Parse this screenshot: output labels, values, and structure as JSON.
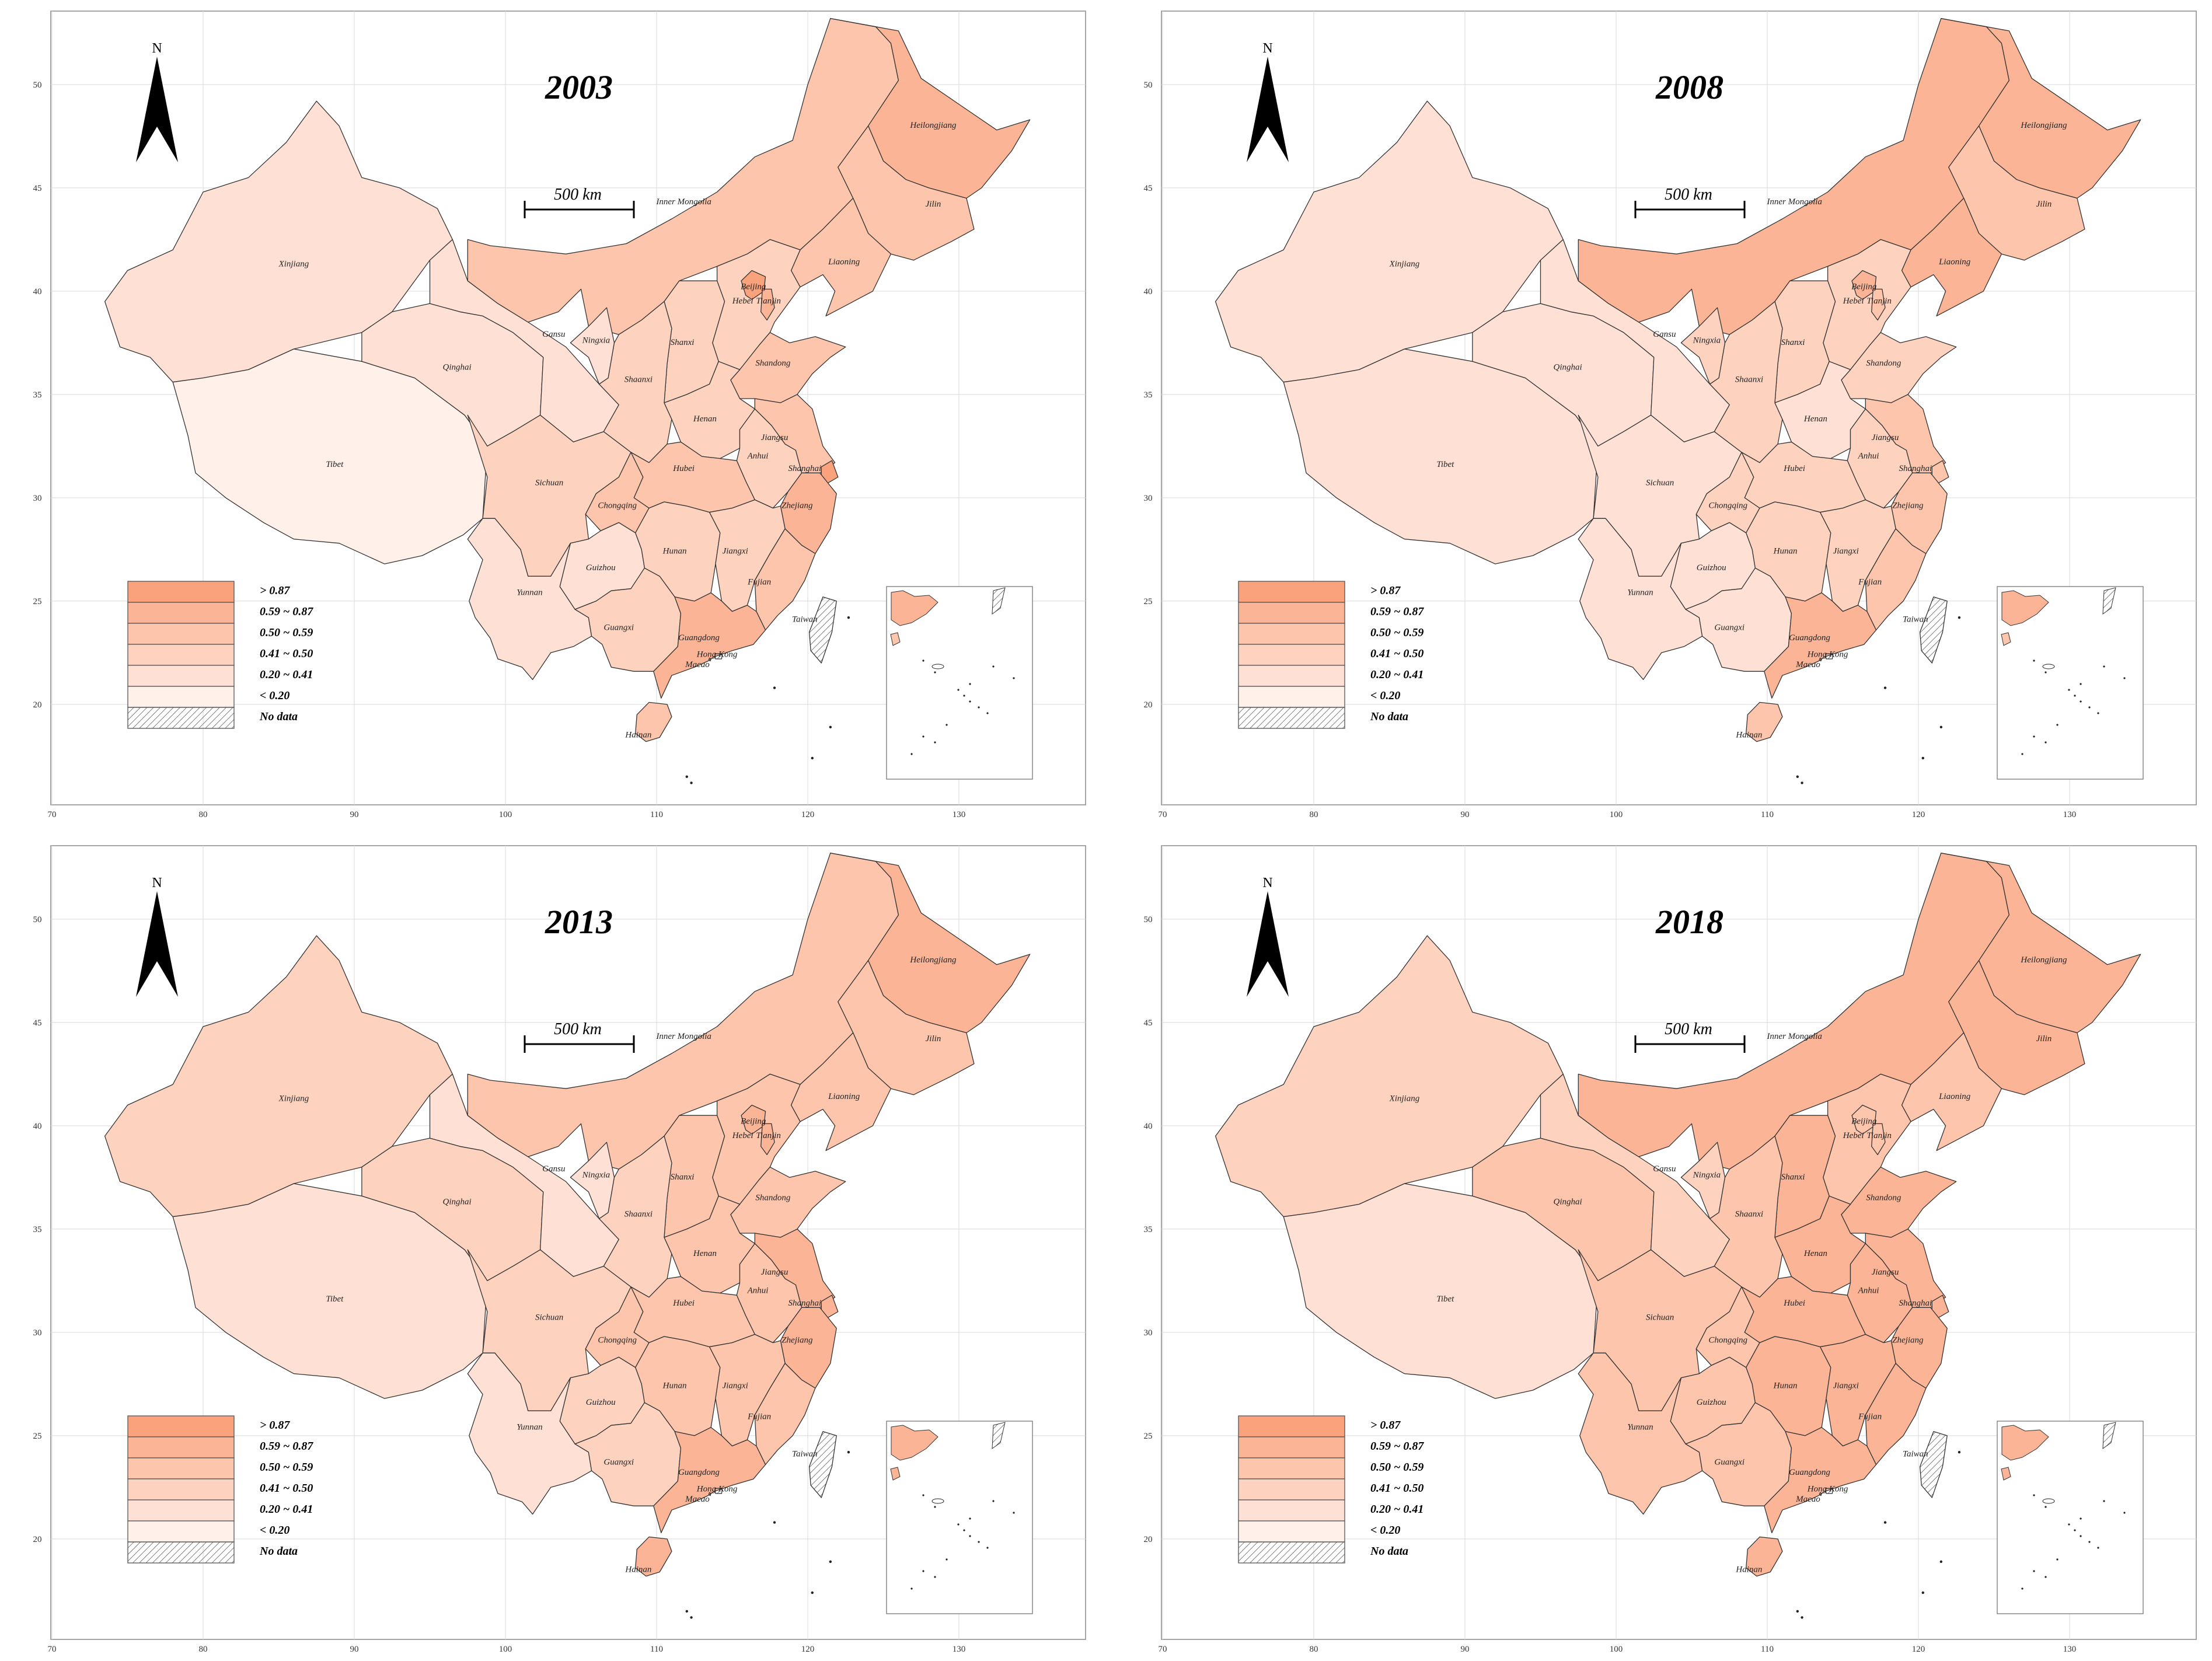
{
  "map": {
    "axes": {
      "x_ticks": [
        "70",
        "80",
        "90",
        "100",
        "110",
        "120",
        "130"
      ],
      "y_ticks": [
        "50",
        "45",
        "40",
        "35",
        "30",
        "25",
        "20"
      ]
    },
    "north_label": "N",
    "scale_label": "500 km",
    "legend": [
      {
        "label": "> 0.87",
        "color": "#f9a27b"
      },
      {
        "label": "0.59 ~ 0.87",
        "color": "#fbb496"
      },
      {
        "label": "0.50 ~ 0.59",
        "color": "#fcc5ac"
      },
      {
        "label": "0.41 ~ 0.50",
        "color": "#fdd3c0"
      },
      {
        "label": "0.20 ~ 0.41",
        "color": "#fee1d4"
      },
      {
        "label": "< 0.20",
        "color": "#fff0e9"
      },
      {
        "label": "No data",
        "color": "hatch"
      }
    ],
    "province_names": {
      "xinjiang": "Xinjiang",
      "tibet": "Tibet",
      "qinghai": "Qinghai",
      "gansu": "Gansu",
      "innermongolia": "Inner Mongolia",
      "heilongjiang": "Heilongjiang",
      "jilin": "Jilin",
      "liaoning": "Liaoning",
      "beijing": "Beijing",
      "tianjin": "Tianjin",
      "hebei": "Hebei",
      "shanxi": "Shanxi",
      "shandong": "Shandong",
      "ningxia": "Ningxia",
      "shaanxi": "Shaanxi",
      "henan": "Henan",
      "jiangsu": "Jiangsu",
      "anhui": "Anhui",
      "shanghai": "Shanghai",
      "hubei": "Hubei",
      "sichuan": "Sichuan",
      "chongqing": "Chongqing",
      "zhejiang": "Zhejiang",
      "hunan": "Hunan",
      "jiangxi": "Jiangxi",
      "guizhou": "Guizhou",
      "fujian": "Fujian",
      "yunnan": "Yunnan",
      "guangxi": "Guangxi",
      "guangdong": "Guangdong",
      "taiwan": "Taiwan",
      "hongkong": "Hong Kong",
      "macao": "Macao",
      "hainan": "Hainan"
    },
    "years": [
      {
        "title": "2003",
        "classes": {
          "xinjiang": 4,
          "tibet": 5,
          "qinghai": 4,
          "gansu": 4,
          "innermongolia": 2,
          "heilongjiang": 1,
          "jilin": 2,
          "liaoning": 2,
          "beijing": 0,
          "tianjin": 1,
          "hebei": 3,
          "shanxi": 3,
          "shandong": 2,
          "ningxia": 4,
          "shaanxi": 3,
          "henan": 3,
          "jiangsu": 2,
          "anhui": 3,
          "shanghai": 0,
          "hubei": 2,
          "sichuan": 3,
          "chongqing": 2,
          "zhejiang": 1,
          "hunan": 3,
          "jiangxi": 3,
          "guizhou": 4,
          "fujian": 2,
          "yunnan": 4,
          "guangxi": 3,
          "guangdong": 1,
          "hainan": 2,
          "taiwan": 6,
          "hongkong": 6,
          "macao": 6
        }
      },
      {
        "title": "2008",
        "classes": {
          "xinjiang": 4,
          "tibet": 4,
          "qinghai": 4,
          "gansu": 4,
          "innermongolia": 1,
          "heilongjiang": 1,
          "jilin": 2,
          "liaoning": 1,
          "beijing": 1,
          "tianjin": 2,
          "hebei": 3,
          "shanxi": 3,
          "shandong": 3,
          "ningxia": 3,
          "shaanxi": 3,
          "henan": 4,
          "jiangsu": 2,
          "anhui": 3,
          "shanghai": 2,
          "hubei": 3,
          "sichuan": 4,
          "chongqing": 3,
          "zhejiang": 2,
          "hunan": 3,
          "jiangxi": 3,
          "guizhou": 4,
          "fujian": 2,
          "yunnan": 4,
          "guangxi": 4,
          "guangdong": 1,
          "hainan": 2,
          "taiwan": 6,
          "hongkong": 6,
          "macao": 6
        }
      },
      {
        "title": "2013",
        "classes": {
          "xinjiang": 3,
          "tibet": 4,
          "qinghai": 3,
          "gansu": 4,
          "innermongolia": 2,
          "heilongjiang": 1,
          "jilin": 2,
          "liaoning": 2,
          "beijing": 1,
          "tianjin": 1,
          "hebei": 2,
          "shanxi": 2,
          "shandong": 2,
          "ningxia": 4,
          "shaanxi": 3,
          "henan": 2,
          "jiangsu": 1,
          "anhui": 2,
          "shanghai": 1,
          "hubei": 2,
          "sichuan": 3,
          "chongqing": 2,
          "zhejiang": 1,
          "hunan": 2,
          "jiangxi": 2,
          "guizhou": 3,
          "fujian": 2,
          "yunnan": 4,
          "guangxi": 3,
          "guangdong": 1,
          "hainan": 1,
          "taiwan": 6,
          "hongkong": 6,
          "macao": 6
        }
      },
      {
        "title": "2018",
        "classes": {
          "xinjiang": 3,
          "tibet": 4,
          "qinghai": 2,
          "gansu": 3,
          "innermongolia": 1,
          "heilongjiang": 1,
          "jilin": 1,
          "liaoning": 2,
          "beijing": 2,
          "tianjin": 2,
          "hebei": 2,
          "shanxi": 1,
          "shandong": 1,
          "ningxia": 3,
          "shaanxi": 2,
          "henan": 1,
          "jiangsu": 1,
          "anhui": 1,
          "shanghai": 1,
          "hubei": 1,
          "sichuan": 2,
          "chongqing": 2,
          "zhejiang": 1,
          "hunan": 1,
          "jiangxi": 1,
          "guizhou": 2,
          "fujian": 1,
          "yunnan": 2,
          "guangxi": 2,
          "guangdong": 1,
          "hainan": 1,
          "taiwan": 6,
          "hongkong": 6,
          "macao": 6
        }
      }
    ]
  }
}
